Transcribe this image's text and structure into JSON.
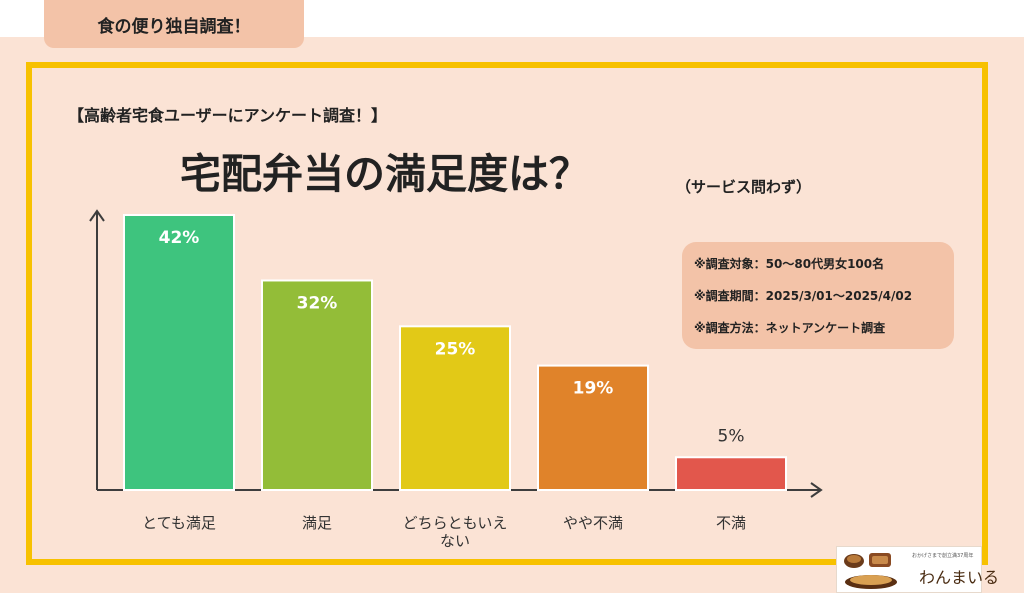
{
  "header": {
    "tag": "食の便り独自調査！"
  },
  "survey_heading": "【高齢者宅食ユーザーにアンケート調査！】",
  "title": "宅配弁当の満足度は？",
  "title_note": "（サービス問わず）",
  "info": [
    "※調査対象：50〜80代男女100名",
    "※調査期間：2025/3/01〜2025/4/02",
    "※調査方法：ネットアンケート調査"
  ],
  "logo": {
    "tagline": "おかげさまで創立満37周年",
    "brand": "わんまいる"
  },
  "colors": {
    "background": "#fbe3d5",
    "frame": "#f7c100",
    "info_box": "#f3c3a8"
  },
  "chart_data": {
    "type": "bar",
    "categories": [
      "とても満足",
      "満足",
      "どちらともいえない",
      "やや不満",
      "不満"
    ],
    "category_lines": [
      [
        "とても満足"
      ],
      [
        "満足"
      ],
      [
        "どちらともいえ",
        "ない"
      ],
      [
        "やや不満"
      ],
      [
        "不満"
      ]
    ],
    "values": [
      42,
      32,
      25,
      19,
      5
    ],
    "data_labels": [
      "42%",
      "32%",
      "25%",
      "19%",
      "5%"
    ],
    "colors": [
      "#3ec47e",
      "#93bd38",
      "#e2c917",
      "#e0832a",
      "#e2574c"
    ],
    "ylim": [
      0,
      42
    ],
    "xlabel": "",
    "ylabel": ""
  }
}
